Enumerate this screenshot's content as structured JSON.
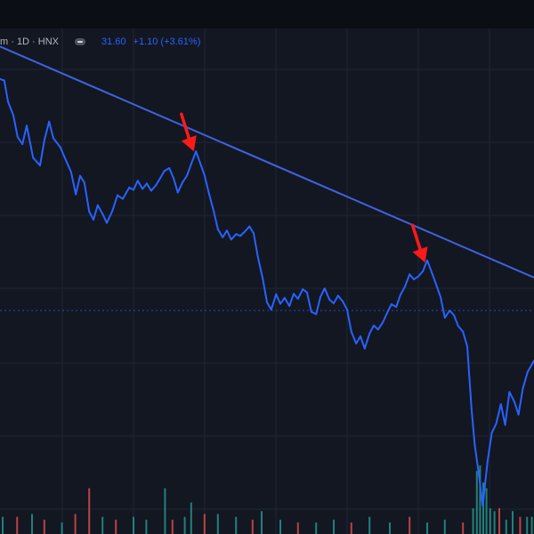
{
  "legend": {
    "symbol_text": "m · 1D · HNX",
    "price": "31.60",
    "change": "+1.10 (+3.61%)"
  },
  "colors": {
    "background": "#131722",
    "topbar": "#0b0e14",
    "grid": "#1f2433",
    "price_line": "#2962ff",
    "trend_line": "#3f63e0",
    "arrow": "#ff1a1a",
    "volume_up": "#26a69a",
    "volume_down": "#ef5350",
    "current_price_line": "#2962ff"
  },
  "chart_data": {
    "type": "line",
    "title": "",
    "xlabel": "",
    "ylabel": "",
    "grid": true,
    "xlim": [
      0,
      100
    ],
    "ylim": [
      0,
      100
    ],
    "series": [
      {
        "values": [
          [
            0,
            95.9
          ],
          [
            0.8,
            95.6
          ],
          [
            1.5,
            90.9
          ],
          [
            2.5,
            87.9
          ],
          [
            3.3,
            83.1
          ],
          [
            4.2,
            81.5
          ],
          [
            5,
            85.6
          ],
          [
            6.2,
            78.5
          ],
          [
            7.5,
            76.8
          ],
          [
            8.3,
            82.3
          ],
          [
            9.2,
            86.5
          ],
          [
            10,
            82.8
          ],
          [
            11.3,
            80.8
          ],
          [
            12.5,
            77.5
          ],
          [
            13.3,
            75.4
          ],
          [
            14.2,
            70.4
          ],
          [
            15,
            74.5
          ],
          [
            15.8,
            73
          ],
          [
            16.7,
            66.6
          ],
          [
            17.5,
            64.8
          ],
          [
            18.3,
            68
          ],
          [
            19.2,
            66.1
          ],
          [
            20,
            64.1
          ],
          [
            21,
            66.6
          ],
          [
            22,
            70.2
          ],
          [
            23,
            69.4
          ],
          [
            24.2,
            71.9
          ],
          [
            25,
            71.4
          ],
          [
            25.8,
            73.4
          ],
          [
            26.7,
            71.6
          ],
          [
            27.5,
            72.8
          ],
          [
            28.3,
            71.2
          ],
          [
            29.2,
            72.4
          ],
          [
            30,
            74
          ],
          [
            30.8,
            75.6
          ],
          [
            31.7,
            76.2
          ],
          [
            32.5,
            74
          ],
          [
            33.3,
            70.8
          ],
          [
            34.2,
            73.1
          ],
          [
            35,
            74.5
          ],
          [
            35.8,
            77.1
          ],
          [
            36.7,
            79.9
          ],
          [
            37.5,
            77.3
          ],
          [
            38.3,
            74.6
          ],
          [
            39.2,
            70.3
          ],
          [
            40,
            66.8
          ],
          [
            40.8,
            62.7
          ],
          [
            41.7,
            60.9
          ],
          [
            42.5,
            62.4
          ],
          [
            43.3,
            60.4
          ],
          [
            44.2,
            61.6
          ],
          [
            45,
            61.2
          ],
          [
            45.8,
            62.1
          ],
          [
            46.7,
            63.3
          ],
          [
            47.5,
            61.8
          ],
          [
            48.3,
            56.5
          ],
          [
            49.2,
            51.8
          ],
          [
            50,
            46.5
          ],
          [
            50.8,
            44.9
          ],
          [
            51.7,
            48.3
          ],
          [
            52.5,
            46.2
          ],
          [
            53.3,
            47.5
          ],
          [
            54.2,
            45.7
          ],
          [
            55,
            48.4
          ],
          [
            55.8,
            47.3
          ],
          [
            56.7,
            49.4
          ],
          [
            57.5,
            48.7
          ],
          [
            58.3,
            44.4
          ],
          [
            59.2,
            43.9
          ],
          [
            60,
            47.7
          ],
          [
            60.8,
            49.6
          ],
          [
            61.7,
            47.1
          ],
          [
            62.5,
            46.3
          ],
          [
            63.3,
            48
          ],
          [
            64.2,
            46.7
          ],
          [
            65,
            44.9
          ],
          [
            65.8,
            40
          ],
          [
            66.7,
            37.4
          ],
          [
            67.5,
            39
          ],
          [
            68.3,
            36.3
          ],
          [
            69.2,
            39.6
          ],
          [
            70,
            41.4
          ],
          [
            70.8,
            40.5
          ],
          [
            71.7,
            42.1
          ],
          [
            72.5,
            44.2
          ],
          [
            73.3,
            46.1
          ],
          [
            74.2,
            45.5
          ],
          [
            75,
            48.2
          ],
          [
            75.8,
            49.9
          ],
          [
            76.7,
            52.7
          ],
          [
            77.5,
            51.6
          ],
          [
            78.3,
            52.2
          ],
          [
            79.2,
            53.4
          ],
          [
            80,
            55.8
          ],
          [
            80.8,
            53.3
          ],
          [
            81.7,
            50.4
          ],
          [
            82.5,
            47.7
          ],
          [
            83.3,
            43.1
          ],
          [
            84.2,
            44.7
          ],
          [
            85,
            43.7
          ],
          [
            85.8,
            41.3
          ],
          [
            86.7,
            40
          ],
          [
            87.5,
            36.8
          ],
          [
            88.3,
            23
          ],
          [
            88.9,
            15
          ],
          [
            89.6,
            9.1
          ],
          [
            90.4,
            1.5
          ],
          [
            91.3,
            11.3
          ],
          [
            92.1,
            17.7
          ],
          [
            92.9,
            19.6
          ],
          [
            93.8,
            24
          ],
          [
            94.6,
            19.4
          ],
          [
            95.4,
            26.7
          ],
          [
            96.3,
            24.6
          ],
          [
            97.1,
            21.7
          ],
          [
            97.9,
            27.4
          ],
          [
            98.8,
            31.1
          ],
          [
            100,
            33.6
          ]
        ]
      }
    ],
    "trend_line": [
      [
        0,
        103.1
      ],
      [
        100,
        52
      ]
    ],
    "current_price_level": 44.7,
    "annotations": [
      {
        "type": "arrow",
        "target": [
          36.3,
          79.9
        ]
      },
      {
        "type": "arrow",
        "target": [
          79.6,
          55.3
        ]
      }
    ],
    "volume": [
      {
        "x": 0.5,
        "v": 3,
        "d": "up"
      },
      {
        "x": 3.2,
        "v": 3,
        "d": "down"
      },
      {
        "x": 6,
        "v": 3.5,
        "d": "up"
      },
      {
        "x": 8.3,
        "v": 2.5,
        "d": "down"
      },
      {
        "x": 11.6,
        "v": 2,
        "d": "up"
      },
      {
        "x": 14.1,
        "v": 3.5,
        "d": "down"
      },
      {
        "x": 16.7,
        "v": 8,
        "d": "down"
      },
      {
        "x": 19.2,
        "v": 3,
        "d": "up"
      },
      {
        "x": 21.7,
        "v": 2.5,
        "d": "down"
      },
      {
        "x": 25,
        "v": 3,
        "d": "up"
      },
      {
        "x": 27.4,
        "v": 2.5,
        "d": "up"
      },
      {
        "x": 30.9,
        "v": 8,
        "d": "up"
      },
      {
        "x": 32.3,
        "v": 2.5,
        "d": "down"
      },
      {
        "x": 34.6,
        "v": 3,
        "d": "up"
      },
      {
        "x": 35.8,
        "v": 5.5,
        "d": "up"
      },
      {
        "x": 38.3,
        "v": 3.5,
        "d": "down"
      },
      {
        "x": 40.8,
        "v": 3.5,
        "d": "up"
      },
      {
        "x": 44.2,
        "v": 3,
        "d": "up"
      },
      {
        "x": 47.3,
        "v": 2.5,
        "d": "down"
      },
      {
        "x": 49,
        "v": 4,
        "d": "up"
      },
      {
        "x": 52.5,
        "v": 2.5,
        "d": "up"
      },
      {
        "x": 55.8,
        "v": 2,
        "d": "down"
      },
      {
        "x": 59.2,
        "v": 2,
        "d": "up"
      },
      {
        "x": 62.5,
        "v": 2.5,
        "d": "up"
      },
      {
        "x": 65.8,
        "v": 2,
        "d": "down"
      },
      {
        "x": 69.2,
        "v": 3,
        "d": "up"
      },
      {
        "x": 73,
        "v": 2,
        "d": "up"
      },
      {
        "x": 76.7,
        "v": 3,
        "d": "down"
      },
      {
        "x": 80,
        "v": 2,
        "d": "up"
      },
      {
        "x": 83.3,
        "v": 2.5,
        "d": "up"
      },
      {
        "x": 86.7,
        "v": 2,
        "d": "down"
      },
      {
        "x": 88.6,
        "v": 4.5,
        "d": "up"
      },
      {
        "x": 89.3,
        "v": 11,
        "d": "up"
      },
      {
        "x": 89.9,
        "v": 12,
        "d": "up"
      },
      {
        "x": 90.5,
        "v": 9,
        "d": "up"
      },
      {
        "x": 91.1,
        "v": 8,
        "d": "up"
      },
      {
        "x": 91.8,
        "v": 4.5,
        "d": "up"
      },
      {
        "x": 92.6,
        "v": 4,
        "d": "up"
      },
      {
        "x": 93.5,
        "v": 4.5,
        "d": "down"
      },
      {
        "x": 94.8,
        "v": 2.5,
        "d": "up"
      },
      {
        "x": 96,
        "v": 4,
        "d": "up"
      },
      {
        "x": 97.4,
        "v": 3,
        "d": "down"
      },
      {
        "x": 98.7,
        "v": 3,
        "d": "up"
      },
      {
        "x": 99.6,
        "v": 3,
        "d": "up"
      }
    ]
  }
}
